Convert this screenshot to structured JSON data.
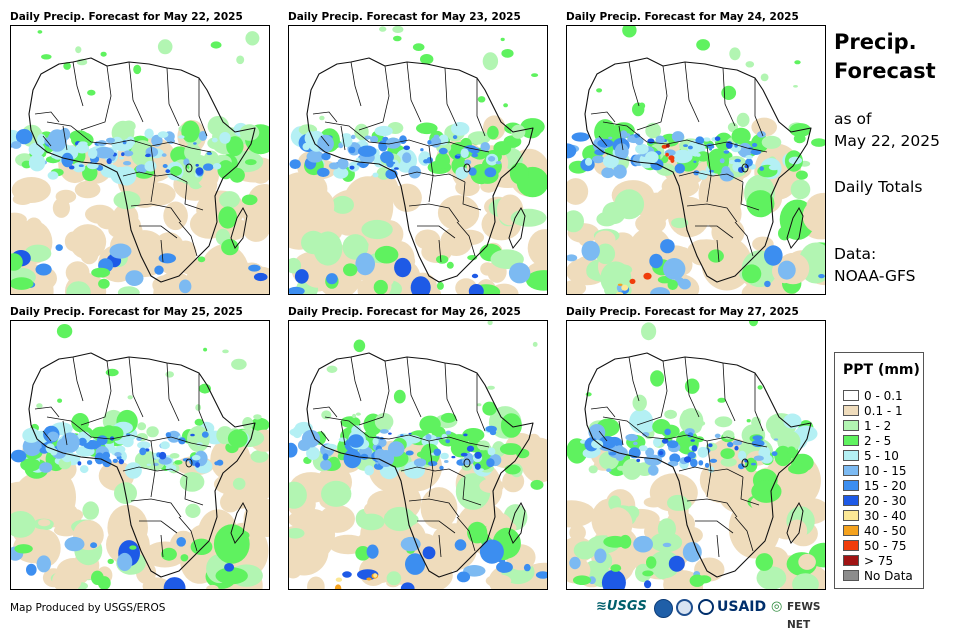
{
  "panels": [
    {
      "title": "Daily Precip. Forecast for May 22, 2025"
    },
    {
      "title": "Daily Precip. Forecast for May 23, 2025"
    },
    {
      "title": "Daily Precip. Forecast for May 24, 2025"
    },
    {
      "title": "Daily Precip. Forecast for May 25, 2025"
    },
    {
      "title": "Daily Precip. Forecast for May 26, 2025"
    },
    {
      "title": "Daily Precip. Forecast for May 27, 2025"
    }
  ],
  "sidebar": {
    "title_line1": "Precip.",
    "title_line2": "Forecast",
    "asof_line1": "as of",
    "asof_line2": "May 22, 2025",
    "totals": "Daily Totals",
    "data_line1": "Data:",
    "data_line2": "NOAA-GFS"
  },
  "legend": {
    "title": "PPT (mm)",
    "items": [
      {
        "label": "0 - 0.1",
        "color": "#ffffff"
      },
      {
        "label": "0.1 - 1",
        "color": "#efdcbc"
      },
      {
        "label": "1 - 2",
        "color": "#b2f5b2"
      },
      {
        "label": "2 - 5",
        "color": "#5ff25f"
      },
      {
        "label": "5 - 10",
        "color": "#b4f0f4"
      },
      {
        "label": "10 - 15",
        "color": "#7cbaf2"
      },
      {
        "label": "15 - 20",
        "color": "#3c8ef0"
      },
      {
        "label": "20 - 30",
        "color": "#1e5ae6"
      },
      {
        "label": "30 - 40",
        "color": "#fce896"
      },
      {
        "label": "40 - 50",
        "color": "#f4a21e"
      },
      {
        "label": "50 - 75",
        "color": "#f03c0a"
      },
      {
        "label": "> 75",
        "color": "#a01414"
      },
      {
        "label": "No Data",
        "color": "#8c8c8c"
      }
    ]
  },
  "footer": {
    "credit": "Map Produced by USGS/EROS",
    "logo_usgs": "USGS",
    "logo_usaid": "USAID",
    "logo_fewsnet": "FEWS NET"
  }
}
